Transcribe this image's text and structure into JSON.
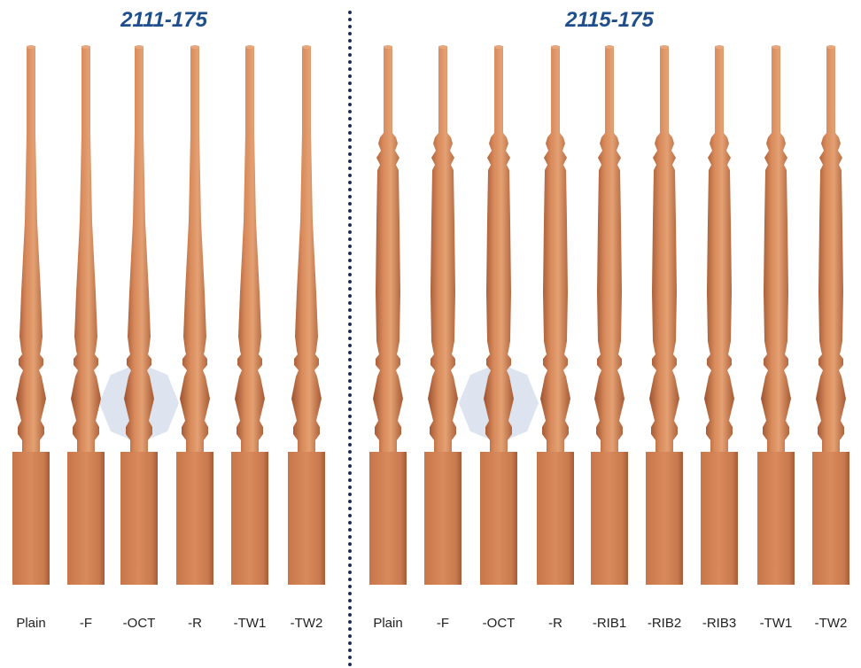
{
  "groups": [
    {
      "title": "2111-175",
      "labels": [
        "Plain",
        "-F",
        "-OCT",
        "-R",
        "-TW1",
        "-TW2"
      ]
    },
    {
      "title": "2115-175",
      "labels": [
        "Plain",
        "-F",
        "-OCT",
        "-R",
        "-RIB1",
        "-RIB2",
        "-RIB3",
        "-TW1",
        "-TW2"
      ]
    }
  ]
}
